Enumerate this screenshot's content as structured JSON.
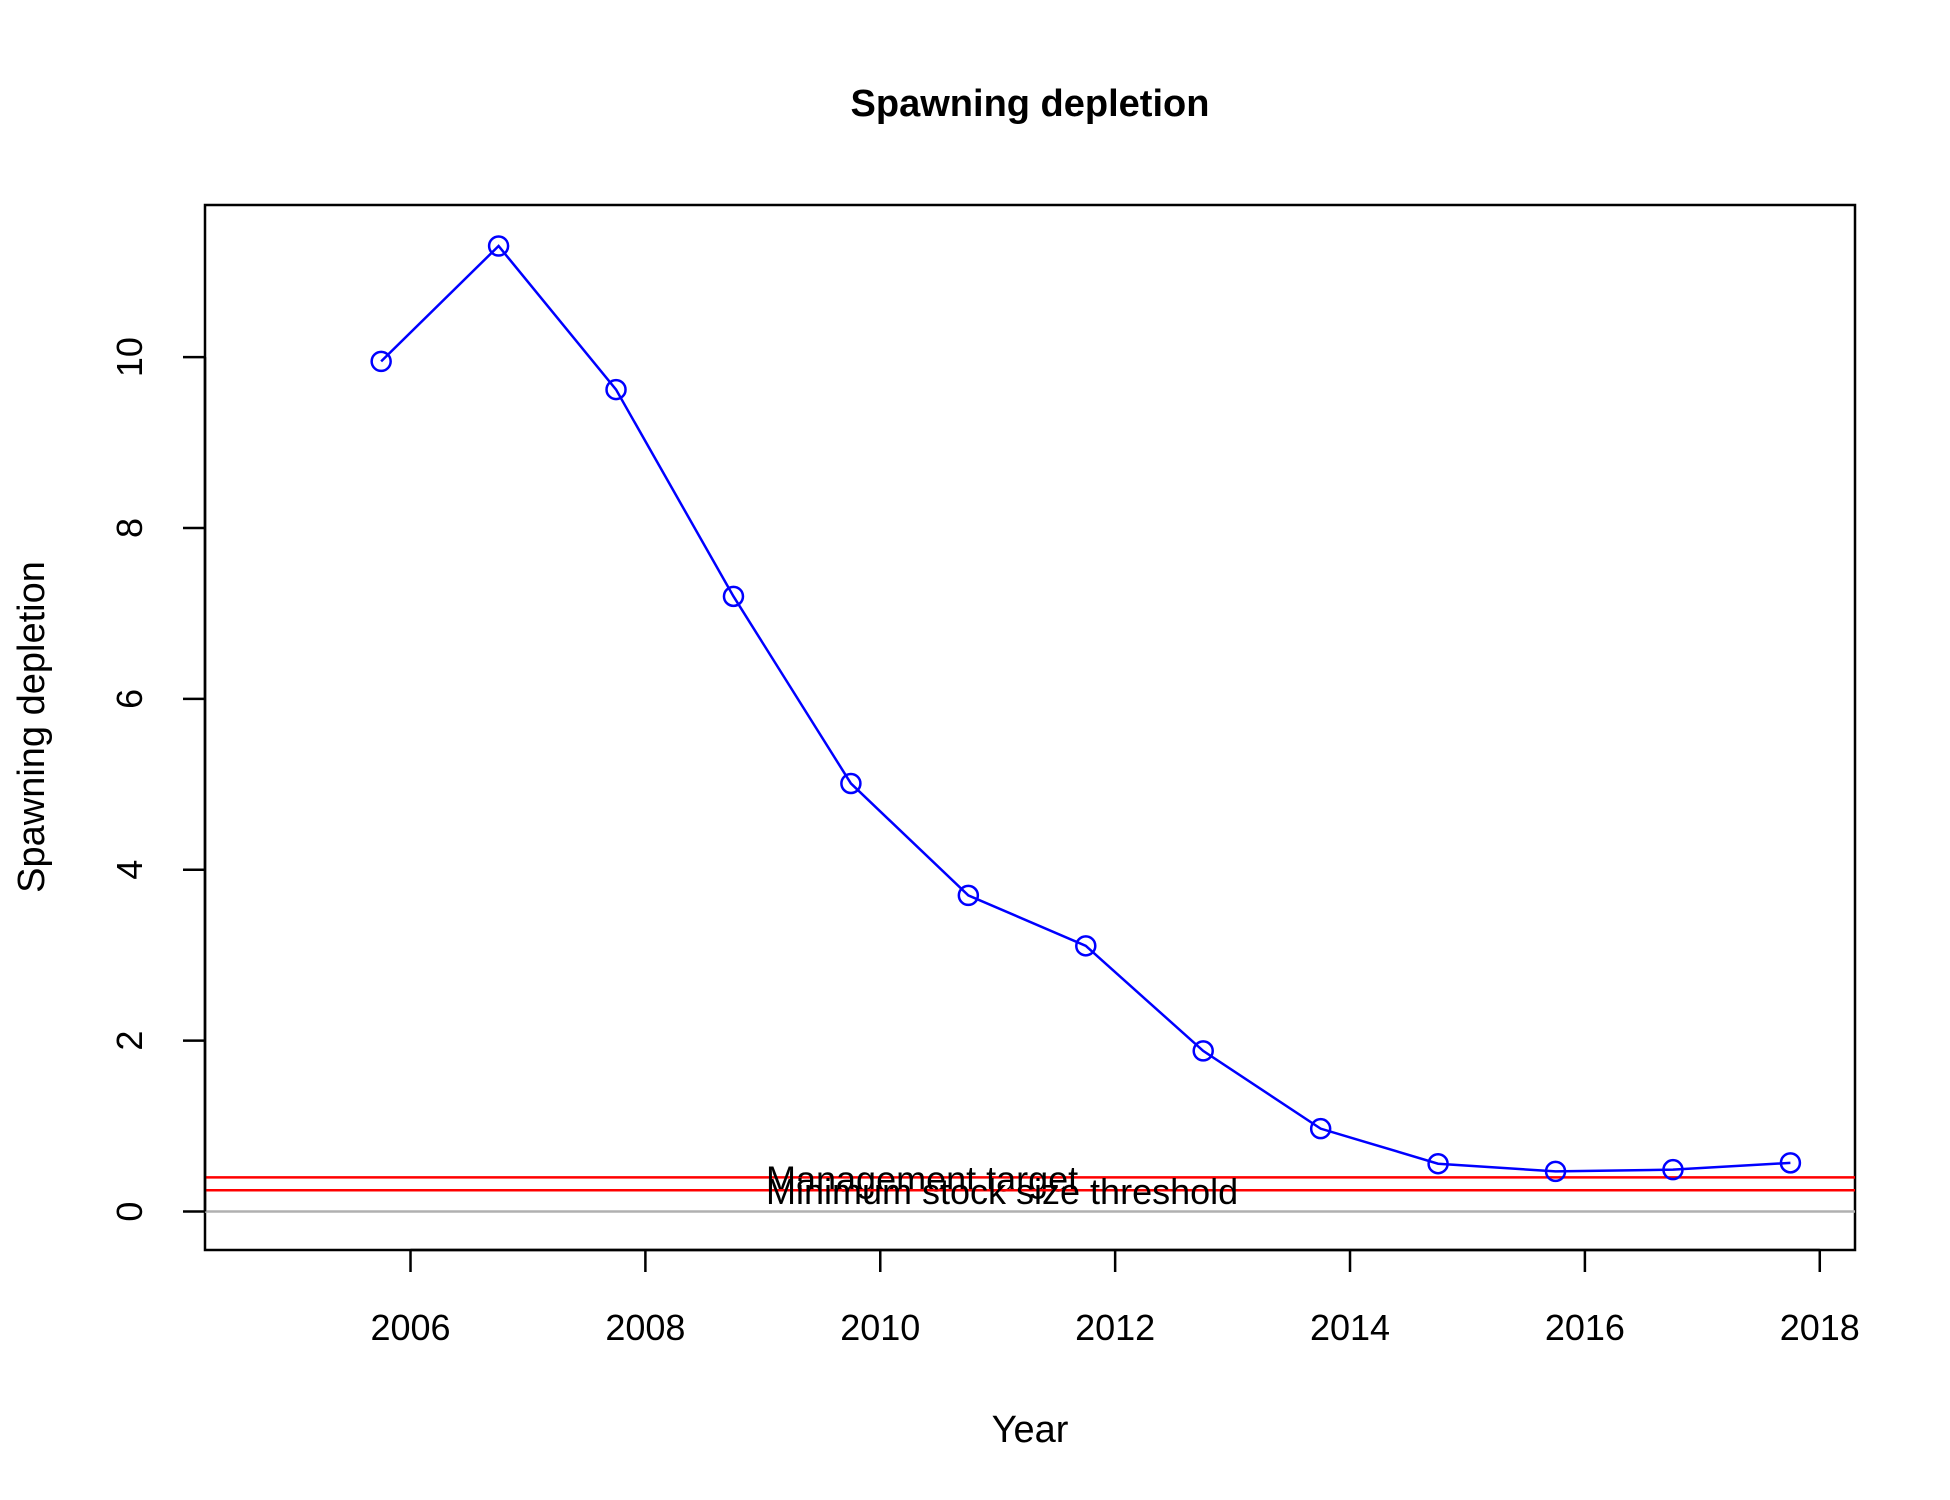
{
  "chart_data": {
    "type": "line",
    "title": "Spawning depletion",
    "xlabel": "Year",
    "ylabel": "Spawning depletion",
    "xlim": [
      2004.25,
      2018.3
    ],
    "ylim": [
      -0.45,
      11.78
    ],
    "x_ticks": [
      2006,
      2008,
      2010,
      2012,
      2014,
      2016,
      2018
    ],
    "y_ticks": [
      0,
      2,
      4,
      6,
      8,
      10
    ],
    "grid": false,
    "series": [
      {
        "color": "#0000ff",
        "marker": "open-circle",
        "x": [
          2005.75,
          2006.75,
          2007.75,
          2008.75,
          2009.75,
          2010.75,
          2011.75,
          2012.75,
          2013.75,
          2014.75,
          2015.75,
          2016.75,
          2017.75
        ],
        "y": [
          9.95,
          11.3,
          9.62,
          7.2,
          5.01,
          3.7,
          3.11,
          1.88,
          0.97,
          0.56,
          0.47,
          0.49,
          0.57
        ]
      }
    ],
    "reference_lines": [
      {
        "label": "Management target",
        "y": 0.4,
        "color": "#ff0000"
      },
      {
        "label": "Minimum stock size threshold",
        "y": 0.25,
        "color": "#ff0000"
      },
      {
        "label": "",
        "y": 0,
        "color": "#b0b0b0"
      }
    ]
  }
}
